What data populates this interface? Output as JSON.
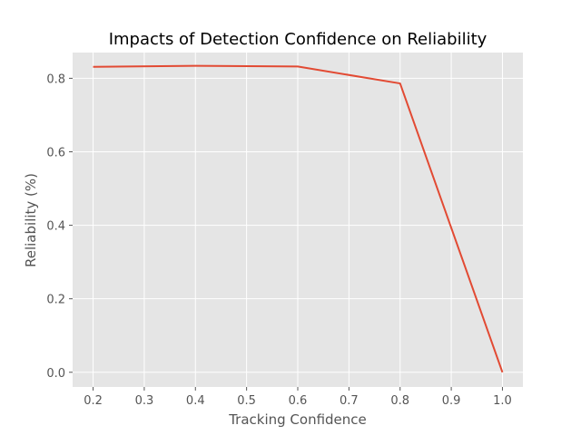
{
  "chart_data": {
    "type": "line",
    "title": "Impacts of Detection Confidence on Reliability",
    "xlabel": "Tracking Confidence",
    "ylabel": "Reliability (%)",
    "xlim": [
      0.16,
      1.04
    ],
    "ylim": [
      -0.04,
      0.87
    ],
    "x_ticks": [
      0.2,
      0.3,
      0.4,
      0.5,
      0.6,
      0.7,
      0.8,
      0.9,
      1.0
    ],
    "x_tick_labels": [
      "0.2",
      "0.3",
      "0.4",
      "0.5",
      "0.6",
      "0.7",
      "0.8",
      "0.9",
      "1.0"
    ],
    "y_ticks": [
      0.0,
      0.2,
      0.4,
      0.6,
      0.8
    ],
    "y_tick_labels": [
      "0.0",
      "0.2",
      "0.4",
      "0.6",
      "0.8"
    ],
    "grid": true,
    "background_color": "#E5E5E5",
    "grid_color": "#FFFFFF",
    "series": [
      {
        "color": "#E24A33",
        "x": [
          0.2,
          0.4,
          0.6,
          0.8,
          1.0
        ],
        "y": [
          0.831,
          0.834,
          0.832,
          0.786,
          0.0
        ]
      }
    ]
  }
}
